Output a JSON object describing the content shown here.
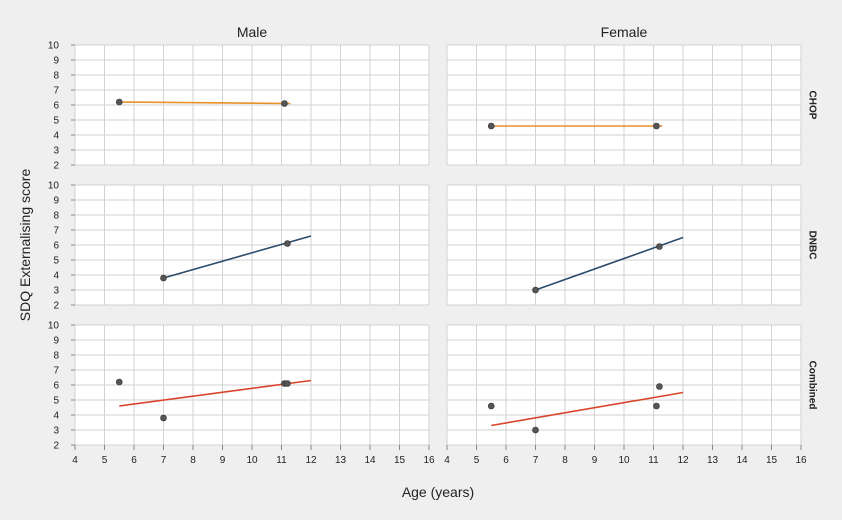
{
  "chart_data": {
    "type": "scatter",
    "ylabel": "SDQ Externalising score",
    "xlabel": "Age (years)",
    "columns": [
      "Male",
      "Female"
    ],
    "rows": [
      "CHOP",
      "DNBC",
      "Combined"
    ],
    "xlim": [
      4,
      16
    ],
    "ylim": [
      2,
      10
    ],
    "x_ticks": [
      4,
      5,
      6,
      7,
      8,
      9,
      10,
      11,
      12,
      13,
      14,
      15,
      16
    ],
    "y_ticks": [
      2,
      3,
      4,
      5,
      6,
      7,
      8,
      9,
      10
    ],
    "grid": true,
    "colors": {
      "CHOP": "#e8902a",
      "DNBC": "#2b4b6b",
      "Combined": "#d9452b",
      "points": "#555555"
    },
    "panels": [
      {
        "row": "CHOP",
        "col": "Male",
        "points": [
          [
            5.5,
            6.2
          ],
          [
            11.1,
            6.1
          ]
        ],
        "fit": [
          [
            5.5,
            6.2
          ],
          [
            11.3,
            6.1
          ]
        ]
      },
      {
        "row": "CHOP",
        "col": "Female",
        "points": [
          [
            5.5,
            4.6
          ],
          [
            11.1,
            4.6
          ]
        ],
        "fit": [
          [
            5.5,
            4.6
          ],
          [
            11.3,
            4.6
          ]
        ]
      },
      {
        "row": "DNBC",
        "col": "Male",
        "points": [
          [
            7.0,
            3.8
          ],
          [
            11.2,
            6.1
          ]
        ],
        "fit": [
          [
            7.0,
            3.8
          ],
          [
            12.0,
            6.6
          ]
        ]
      },
      {
        "row": "DNBC",
        "col": "Female",
        "points": [
          [
            7.0,
            3.0
          ],
          [
            11.2,
            5.9
          ]
        ],
        "fit": [
          [
            7.0,
            3.0
          ],
          [
            12.0,
            6.5
          ]
        ]
      },
      {
        "row": "Combined",
        "col": "Male",
        "points": [
          [
            5.5,
            6.2
          ],
          [
            7.0,
            3.8
          ],
          [
            11.1,
            6.1
          ],
          [
            11.2,
            6.1
          ]
        ],
        "fit": [
          [
            5.5,
            4.6
          ],
          [
            12.0,
            6.3
          ]
        ]
      },
      {
        "row": "Combined",
        "col": "Female",
        "points": [
          [
            5.5,
            4.6
          ],
          [
            7.0,
            3.0
          ],
          [
            11.1,
            4.6
          ],
          [
            11.2,
            5.9
          ]
        ],
        "fit": [
          [
            5.5,
            3.3
          ],
          [
            12.0,
            5.5
          ]
        ]
      }
    ]
  }
}
